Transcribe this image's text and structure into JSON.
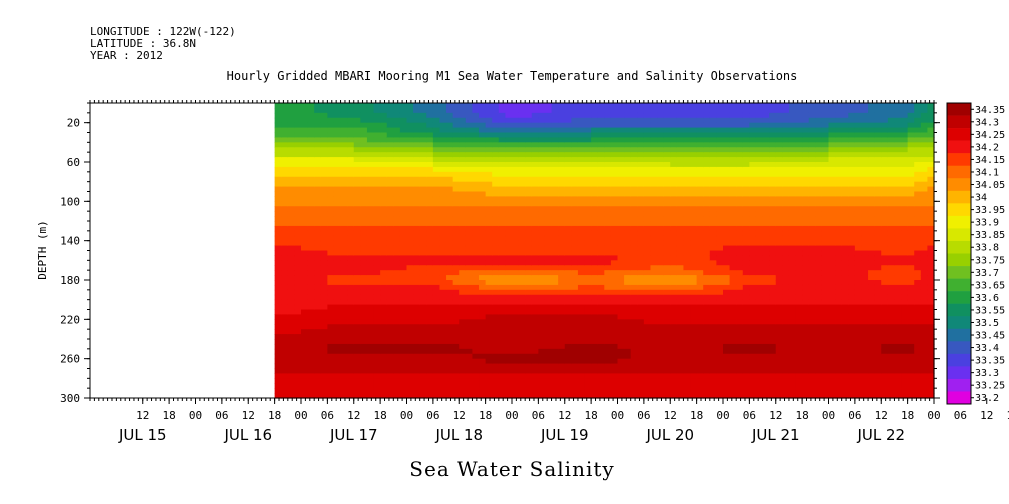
{
  "header": {
    "longitude": "LONGITUDE : 122W(-122)",
    "latitude": "LATITUDE : 36.8N",
    "year": "YEAR : 2012"
  },
  "chart_data": {
    "type": "heatmap",
    "title": "Hourly Gridded MBARI Mooring M1 Sea Water Temperature and Salinity Observations",
    "xlabel": "Sea Water Salinity",
    "ylabel": "DEPTH (m)",
    "ylim": [
      300,
      0
    ],
    "y_ticks": [
      "20",
      "60",
      "100",
      "140",
      "180",
      "220",
      "260",
      "300"
    ],
    "x_range_hours": [
      0,
      192
    ],
    "x_hour_ticks": [
      "12",
      "18",
      "00",
      "06",
      "12",
      "18",
      "00",
      "06",
      "12",
      "18",
      "00",
      "06",
      "12",
      "18",
      "00",
      "06",
      "12",
      "18",
      "00",
      "06",
      "12",
      "18",
      "00",
      "06",
      "12",
      "18",
      "00",
      "06",
      "12",
      "18",
      "00",
      "06",
      "12",
      "18",
      "00",
      "06"
    ],
    "x_date_labels": [
      "JUL 15",
      "JUL 16",
      "JUL 17",
      "JUL 18",
      "JUL 19",
      "JUL 20",
      "JUL 21",
      "JUL 22"
    ],
    "data_start_hour": 42,
    "grid": false,
    "colorbar": {
      "levels": [
        "34.35",
        "34.3",
        "34.25",
        "34.2",
        "34.15",
        "34.1",
        "34.05",
        "34",
        "33.95",
        "33.9",
        "33.85",
        "33.8",
        "33.75",
        "33.7",
        "33.65",
        "33.6",
        "33.55",
        "33.5",
        "33.45",
        "33.4",
        "33.35",
        "33.3",
        "33.25",
        "33.2"
      ],
      "colors": [
        "#a00000",
        "#c00000",
        "#dd0000",
        "#f01010",
        "#ff3a00",
        "#ff6a00",
        "#ff8c00",
        "#ffb400",
        "#ffd800",
        "#f0f000",
        "#d8e800",
        "#b8dc00",
        "#98d000",
        "#70c020",
        "#40b030",
        "#20a040",
        "#109060",
        "#108878",
        "#2070a0",
        "#3858c0",
        "#4a40e0",
        "#6a30f0",
        "#a020f0",
        "#e000e0"
      ]
    },
    "profile": {
      "depths": [
        10,
        20,
        30,
        40,
        50,
        60,
        70,
        80,
        90,
        100,
        110,
        120,
        130,
        140,
        150,
        160,
        170,
        180,
        190,
        200,
        210,
        220,
        230,
        240,
        250,
        260,
        270,
        280,
        290,
        300
      ],
      "time_hours": [
        42,
        60,
        78,
        96,
        114,
        132,
        150,
        168,
        186,
        192
      ],
      "salinity": [
        [
          33.6,
          33.6,
          33.65,
          33.7,
          33.8,
          33.9,
          33.95,
          34.0,
          34.05,
          34.05,
          34.1,
          34.1,
          34.15,
          34.15,
          34.2,
          34.2,
          34.2,
          34.2,
          34.2,
          34.2,
          34.2,
          34.25,
          34.25,
          34.3,
          34.3,
          34.3,
          34.3,
          34.25,
          34.25,
          34.25
        ],
        [
          33.55,
          33.6,
          33.65,
          33.7,
          33.8,
          33.9,
          33.95,
          34.0,
          34.05,
          34.05,
          34.1,
          34.1,
          34.15,
          34.15,
          34.15,
          34.2,
          34.2,
          34.15,
          34.2,
          34.2,
          34.25,
          34.25,
          34.3,
          34.3,
          34.35,
          34.3,
          34.3,
          34.25,
          34.25,
          34.25
        ],
        [
          33.45,
          33.5,
          33.55,
          33.65,
          33.75,
          33.85,
          33.95,
          34.0,
          34.05,
          34.05,
          34.1,
          34.1,
          34.15,
          34.15,
          34.15,
          34.2,
          34.15,
          34.15,
          34.2,
          34.2,
          34.25,
          34.25,
          34.3,
          34.3,
          34.35,
          34.3,
          34.3,
          34.25,
          34.25,
          34.25
        ],
        [
          33.3,
          33.35,
          33.45,
          33.6,
          33.7,
          33.8,
          33.9,
          33.95,
          34.0,
          34.05,
          34.1,
          34.1,
          34.15,
          34.15,
          34.15,
          34.2,
          34.1,
          34.0,
          34.1,
          34.2,
          34.25,
          34.3,
          34.3,
          34.3,
          34.3,
          34.35,
          34.3,
          34.25,
          34.25,
          34.25
        ],
        [
          33.35,
          33.4,
          33.5,
          33.6,
          33.75,
          33.85,
          33.9,
          33.95,
          34.0,
          34.05,
          34.1,
          34.1,
          34.15,
          34.15,
          34.15,
          34.2,
          34.15,
          34.1,
          34.15,
          34.2,
          34.25,
          34.3,
          34.3,
          34.3,
          34.35,
          34.35,
          34.3,
          34.25,
          34.25,
          34.25
        ],
        [
          33.35,
          33.4,
          33.5,
          33.6,
          33.7,
          33.8,
          33.9,
          33.95,
          34.0,
          34.05,
          34.1,
          34.1,
          34.15,
          34.15,
          34.15,
          34.15,
          34.1,
          34.0,
          34.1,
          34.2,
          34.25,
          34.25,
          34.3,
          34.3,
          34.3,
          34.3,
          34.3,
          34.25,
          34.25,
          34.25
        ],
        [
          33.35,
          33.4,
          33.5,
          33.6,
          33.7,
          33.8,
          33.9,
          33.95,
          34.0,
          34.05,
          34.1,
          34.1,
          34.15,
          34.15,
          34.2,
          34.2,
          34.2,
          34.15,
          34.2,
          34.2,
          34.25,
          34.25,
          34.3,
          34.3,
          34.35,
          34.3,
          34.3,
          34.25,
          34.25,
          34.25
        ],
        [
          33.4,
          33.45,
          33.55,
          33.65,
          33.75,
          33.85,
          33.9,
          33.95,
          34.0,
          34.05,
          34.1,
          34.1,
          34.15,
          34.15,
          34.2,
          34.2,
          34.2,
          34.2,
          34.2,
          34.2,
          34.25,
          34.25,
          34.3,
          34.3,
          34.3,
          34.3,
          34.3,
          34.25,
          34.25,
          34.25
        ],
        [
          33.45,
          33.5,
          33.6,
          33.7,
          33.8,
          33.85,
          33.9,
          33.95,
          34.0,
          34.05,
          34.1,
          34.1,
          34.15,
          34.15,
          34.15,
          34.2,
          34.15,
          34.15,
          34.2,
          34.2,
          34.25,
          34.25,
          34.3,
          34.3,
          34.35,
          34.3,
          34.3,
          34.25,
          34.25,
          34.25
        ],
        [
          33.55,
          33.6,
          33.65,
          33.7,
          33.8,
          33.9,
          33.95,
          34.0,
          34.05,
          34.05,
          34.1,
          34.1,
          34.15,
          34.15,
          34.2,
          34.2,
          34.2,
          34.2,
          34.2,
          34.2,
          34.25,
          34.25,
          34.3,
          34.3,
          34.3,
          34.3,
          34.3,
          34.25,
          34.25,
          34.25
        ]
      ]
    }
  }
}
